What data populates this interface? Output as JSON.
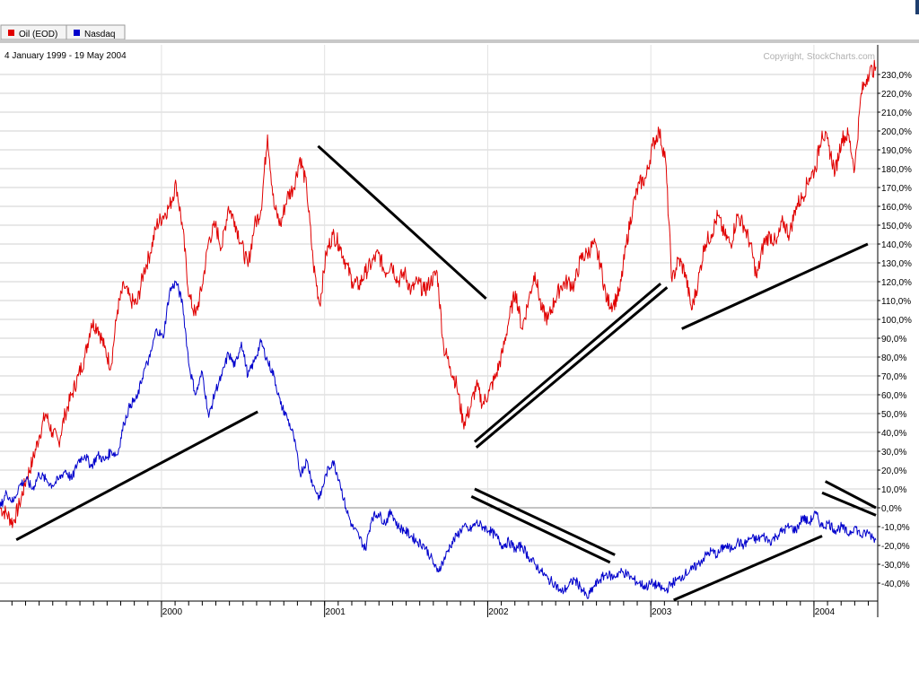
{
  "legend": {
    "oil_label": "Oil (EOD)",
    "nasdaq_label": "Nasdaq",
    "oil_color": "#e00000",
    "nasdaq_color": "#0000cc"
  },
  "date_range": "4 January 1999 - 19 May 2004",
  "copyright": "Copyright, StockCharts.com",
  "chart_data": {
    "type": "line",
    "title": "",
    "ylabel": "",
    "xlabel": "",
    "ylim": [
      -45,
      235
    ],
    "grid": true,
    "y_ticks": [
      230,
      220,
      210,
      200,
      190,
      180,
      170,
      160,
      150,
      140,
      130,
      120,
      110,
      100,
      90,
      80,
      70,
      60,
      50,
      40,
      30,
      20,
      10,
      0,
      -10,
      -20,
      -30,
      -40
    ],
    "y_tick_labels": [
      "230,0%",
      "220,0%",
      "210,0%",
      "200,0%",
      "190,0%",
      "180,0%",
      "170,0%",
      "160,0%",
      "150,0%",
      "140,0%",
      "130,0%",
      "120,0%",
      "110,0%",
      "100,0%",
      "90,0%",
      "80,0%",
      "70,0%",
      "60,0%",
      "50,0%",
      "40,0%",
      "30,0%",
      "20,0%",
      "10,0%",
      "0,0%",
      "-10,0%",
      "-20,0%",
      "-30,0%",
      "-40,0%"
    ],
    "x_ticks": [
      {
        "label": "2000",
        "t": 2000.0
      },
      {
        "label": "2001",
        "t": 2001.0
      },
      {
        "label": "2002",
        "t": 2002.0
      },
      {
        "label": "2003",
        "t": 2003.0
      },
      {
        "label": "2004",
        "t": 2004.0
      }
    ],
    "x_range": [
      1999.01,
      2004.38
    ],
    "series": [
      {
        "name": "Oil (EOD)",
        "color": "#e00000",
        "points": [
          [
            1999.01,
            0
          ],
          [
            1999.05,
            -3
          ],
          [
            1999.09,
            -8
          ],
          [
            1999.13,
            2
          ],
          [
            1999.17,
            15
          ],
          [
            1999.21,
            25
          ],
          [
            1999.25,
            38
          ],
          [
            1999.29,
            50
          ],
          [
            1999.33,
            40
          ],
          [
            1999.37,
            35
          ],
          [
            1999.41,
            50
          ],
          [
            1999.45,
            60
          ],
          [
            1999.49,
            70
          ],
          [
            1999.53,
            80
          ],
          [
            1999.57,
            98
          ],
          [
            1999.61,
            96
          ],
          [
            1999.65,
            85
          ],
          [
            1999.69,
            75
          ],
          [
            1999.73,
            105
          ],
          [
            1999.77,
            118
          ],
          [
            1999.81,
            110
          ],
          [
            1999.85,
            108
          ],
          [
            1999.89,
            125
          ],
          [
            1999.93,
            135
          ],
          [
            1999.97,
            150
          ],
          [
            2000.01,
            155
          ],
          [
            2000.05,
            160
          ],
          [
            2000.09,
            172
          ],
          [
            2000.13,
            148
          ],
          [
            2000.17,
            112
          ],
          [
            2000.21,
            102
          ],
          [
            2000.25,
            118
          ],
          [
            2000.29,
            142
          ],
          [
            2000.33,
            150
          ],
          [
            2000.37,
            138
          ],
          [
            2000.41,
            160
          ],
          [
            2000.45,
            152
          ],
          [
            2000.49,
            140
          ],
          [
            2000.53,
            128
          ],
          [
            2000.57,
            150
          ],
          [
            2000.61,
            158
          ],
          [
            2000.65,
            198
          ],
          [
            2000.69,
            160
          ],
          [
            2000.73,
            150
          ],
          [
            2000.77,
            165
          ],
          [
            2000.81,
            170
          ],
          [
            2000.85,
            186
          ],
          [
            2000.89,
            170
          ],
          [
            2000.93,
            130
          ],
          [
            2000.97,
            108
          ],
          [
            2001.01,
            135
          ],
          [
            2001.05,
            145
          ],
          [
            2001.09,
            140
          ],
          [
            2001.13,
            130
          ],
          [
            2001.17,
            120
          ],
          [
            2001.21,
            118
          ],
          [
            2001.25,
            125
          ],
          [
            2001.29,
            130
          ],
          [
            2001.33,
            135
          ],
          [
            2001.37,
            125
          ],
          [
            2001.41,
            130
          ],
          [
            2001.45,
            120
          ],
          [
            2001.49,
            125
          ],
          [
            2001.53,
            115
          ],
          [
            2001.57,
            120
          ],
          [
            2001.61,
            115
          ],
          [
            2001.65,
            120
          ],
          [
            2001.69,
            125
          ],
          [
            2001.73,
            85
          ],
          [
            2001.77,
            75
          ],
          [
            2001.81,
            65
          ],
          [
            2001.85,
            45
          ],
          [
            2001.89,
            52
          ],
          [
            2001.93,
            65
          ],
          [
            2001.97,
            55
          ],
          [
            2002.01,
            62
          ],
          [
            2002.05,
            70
          ],
          [
            2002.09,
            82
          ],
          [
            2002.13,
            100
          ],
          [
            2002.17,
            115
          ],
          [
            2002.21,
            95
          ],
          [
            2002.25,
            110
          ],
          [
            2002.29,
            125
          ],
          [
            2002.33,
            105
          ],
          [
            2002.37,
            100
          ],
          [
            2002.41,
            110
          ],
          [
            2002.45,
            118
          ],
          [
            2002.49,
            120
          ],
          [
            2002.53,
            118
          ],
          [
            2002.57,
            132
          ],
          [
            2002.61,
            135
          ],
          [
            2002.65,
            140
          ],
          [
            2002.69,
            130
          ],
          [
            2002.73,
            110
          ],
          [
            2002.77,
            108
          ],
          [
            2002.81,
            115
          ],
          [
            2002.85,
            140
          ],
          [
            2002.89,
            160
          ],
          [
            2002.93,
            172
          ],
          [
            2002.97,
            175
          ],
          [
            2003.01,
            192
          ],
          [
            2003.05,
            200
          ],
          [
            2003.09,
            185
          ],
          [
            2003.13,
            120
          ],
          [
            2003.17,
            132
          ],
          [
            2003.21,
            125
          ],
          [
            2003.25,
            105
          ],
          [
            2003.29,
            120
          ],
          [
            2003.33,
            140
          ],
          [
            2003.37,
            145
          ],
          [
            2003.41,
            155
          ],
          [
            2003.45,
            145
          ],
          [
            2003.49,
            140
          ],
          [
            2003.53,
            155
          ],
          [
            2003.57,
            150
          ],
          [
            2003.61,
            140
          ],
          [
            2003.65,
            122
          ],
          [
            2003.69,
            140
          ],
          [
            2003.73,
            145
          ],
          [
            2003.77,
            140
          ],
          [
            2003.81,
            152
          ],
          [
            2003.85,
            145
          ],
          [
            2003.89,
            160
          ],
          [
            2003.93,
            165
          ],
          [
            2003.97,
            175
          ],
          [
            2004.01,
            180
          ],
          [
            2004.05,
            200
          ],
          [
            2004.09,
            192
          ],
          [
            2004.13,
            178
          ],
          [
            2004.17,
            196
          ],
          [
            2004.21,
            198
          ],
          [
            2004.25,
            180
          ],
          [
            2004.29,
            220
          ],
          [
            2004.33,
            230
          ],
          [
            2004.38,
            234
          ]
        ]
      },
      {
        "name": "Nasdaq",
        "color": "#0000cc",
        "points": [
          [
            1999.01,
            0
          ],
          [
            1999.05,
            8
          ],
          [
            1999.09,
            3
          ],
          [
            1999.13,
            12
          ],
          [
            1999.17,
            15
          ],
          [
            1999.21,
            10
          ],
          [
            1999.25,
            18
          ],
          [
            1999.29,
            15
          ],
          [
            1999.33,
            12
          ],
          [
            1999.37,
            15
          ],
          [
            1999.41,
            20
          ],
          [
            1999.45,
            15
          ],
          [
            1999.49,
            25
          ],
          [
            1999.53,
            28
          ],
          [
            1999.57,
            22
          ],
          [
            1999.61,
            28
          ],
          [
            1999.65,
            25
          ],
          [
            1999.69,
            30
          ],
          [
            1999.73,
            28
          ],
          [
            1999.77,
            45
          ],
          [
            1999.81,
            55
          ],
          [
            1999.85,
            58
          ],
          [
            1999.89,
            72
          ],
          [
            1999.93,
            80
          ],
          [
            1999.97,
            95
          ],
          [
            2000.01,
            90
          ],
          [
            2000.05,
            115
          ],
          [
            2000.09,
            120
          ],
          [
            2000.13,
            108
          ],
          [
            2000.17,
            75
          ],
          [
            2000.21,
            60
          ],
          [
            2000.25,
            72
          ],
          [
            2000.29,
            48
          ],
          [
            2000.33,
            62
          ],
          [
            2000.37,
            70
          ],
          [
            2000.41,
            82
          ],
          [
            2000.45,
            75
          ],
          [
            2000.49,
            88
          ],
          [
            2000.53,
            70
          ],
          [
            2000.57,
            78
          ],
          [
            2000.61,
            88
          ],
          [
            2000.65,
            78
          ],
          [
            2000.69,
            70
          ],
          [
            2000.73,
            55
          ],
          [
            2000.77,
            48
          ],
          [
            2000.81,
            38
          ],
          [
            2000.85,
            18
          ],
          [
            2000.89,
            25
          ],
          [
            2000.93,
            12
          ],
          [
            2000.97,
            5
          ],
          [
            2001.01,
            18
          ],
          [
            2001.05,
            25
          ],
          [
            2001.09,
            15
          ],
          [
            2001.13,
            0
          ],
          [
            2001.17,
            -10
          ],
          [
            2001.21,
            -15
          ],
          [
            2001.25,
            -22
          ],
          [
            2001.29,
            -5
          ],
          [
            2001.33,
            -3
          ],
          [
            2001.37,
            -8
          ],
          [
            2001.41,
            -2
          ],
          [
            2001.45,
            -10
          ],
          [
            2001.49,
            -12
          ],
          [
            2001.53,
            -15
          ],
          [
            2001.57,
            -18
          ],
          [
            2001.61,
            -20
          ],
          [
            2001.65,
            -26
          ],
          [
            2001.69,
            -34
          ],
          [
            2001.73,
            -28
          ],
          [
            2001.77,
            -20
          ],
          [
            2001.81,
            -15
          ],
          [
            2001.85,
            -10
          ],
          [
            2001.89,
            -12
          ],
          [
            2001.93,
            -8
          ],
          [
            2001.97,
            -10
          ],
          [
            2002.01,
            -12
          ],
          [
            2002.05,
            -15
          ],
          [
            2002.09,
            -20
          ],
          [
            2002.13,
            -18
          ],
          [
            2002.17,
            -22
          ],
          [
            2002.21,
            -20
          ],
          [
            2002.25,
            -26
          ],
          [
            2002.29,
            -30
          ],
          [
            2002.33,
            -34
          ],
          [
            2002.37,
            -38
          ],
          [
            2002.41,
            -40
          ],
          [
            2002.45,
            -45
          ],
          [
            2002.49,
            -42
          ],
          [
            2002.53,
            -38
          ],
          [
            2002.57,
            -42
          ],
          [
            2002.61,
            -48
          ],
          [
            2002.65,
            -42
          ],
          [
            2002.69,
            -38
          ],
          [
            2002.73,
            -35
          ],
          [
            2002.77,
            -37
          ],
          [
            2002.81,
            -34
          ],
          [
            2002.85,
            -35
          ],
          [
            2002.89,
            -38
          ],
          [
            2002.93,
            -40
          ],
          [
            2002.97,
            -42
          ],
          [
            2003.01,
            -40
          ],
          [
            2003.05,
            -42
          ],
          [
            2003.09,
            -44
          ],
          [
            2003.13,
            -40
          ],
          [
            2003.17,
            -38
          ],
          [
            2003.21,
            -35
          ],
          [
            2003.25,
            -33
          ],
          [
            2003.29,
            -30
          ],
          [
            2003.33,
            -26
          ],
          [
            2003.37,
            -23
          ],
          [
            2003.41,
            -25
          ],
          [
            2003.45,
            -20
          ],
          [
            2003.49,
            -22
          ],
          [
            2003.53,
            -18
          ],
          [
            2003.57,
            -20
          ],
          [
            2003.61,
            -16
          ],
          [
            2003.65,
            -17
          ],
          [
            2003.69,
            -15
          ],
          [
            2003.73,
            -18
          ],
          [
            2003.77,
            -15
          ],
          [
            2003.81,
            -12
          ],
          [
            2003.85,
            -10
          ],
          [
            2003.89,
            -12
          ],
          [
            2003.93,
            -5
          ],
          [
            2003.97,
            -8
          ],
          [
            2004.01,
            -3
          ],
          [
            2004.05,
            -10
          ],
          [
            2004.09,
            -8
          ],
          [
            2004.13,
            -12
          ],
          [
            2004.17,
            -10
          ],
          [
            2004.21,
            -14
          ],
          [
            2004.25,
            -10
          ],
          [
            2004.29,
            -15
          ],
          [
            2004.33,
            -13
          ],
          [
            2004.38,
            -17
          ]
        ]
      }
    ],
    "annotations": {
      "color": "#000000",
      "trendlines": [
        [
          [
            1999.11,
            -17
          ],
          [
            2000.59,
            51
          ]
        ],
        [
          [
            2000.96,
            192
          ],
          [
            2001.99,
            111
          ]
        ],
        [
          [
            2001.92,
            35
          ],
          [
            2003.06,
            119
          ]
        ],
        [
          [
            2001.93,
            32
          ],
          [
            2003.1,
            117
          ]
        ],
        [
          [
            2003.19,
            95
          ],
          [
            2004.33,
            140
          ]
        ],
        [
          [
            2001.92,
            10
          ],
          [
            2002.78,
            -25
          ]
        ],
        [
          [
            2001.9,
            6
          ],
          [
            2002.75,
            -29
          ]
        ],
        [
          [
            2003.14,
            -49
          ],
          [
            2004.05,
            -15
          ]
        ],
        [
          [
            2004.07,
            14
          ],
          [
            2004.38,
            0
          ]
        ],
        [
          [
            2004.05,
            8
          ],
          [
            2004.38,
            -4
          ]
        ]
      ]
    }
  }
}
